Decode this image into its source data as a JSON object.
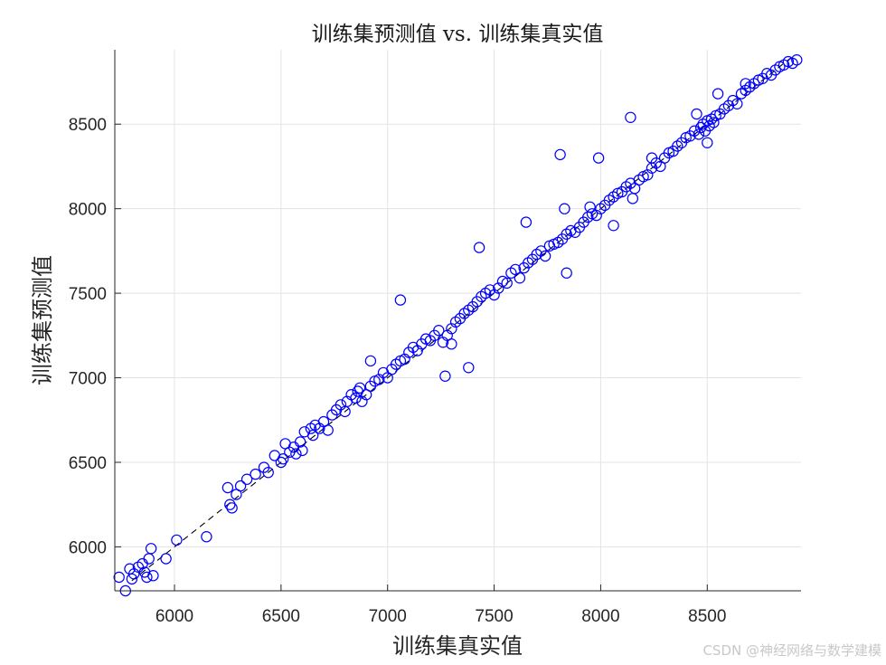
{
  "chart_data": {
    "type": "scatter",
    "title": "训练集预测值 vs. 训练集真实值",
    "xlabel": "训练集真实值",
    "ylabel": "训练集预测值",
    "xlim": [
      5720,
      8940
    ],
    "ylim": [
      5740,
      8940
    ],
    "xticks": [
      6000,
      6500,
      7000,
      7500,
      8000,
      8500
    ],
    "yticks": [
      6000,
      6500,
      7000,
      7500,
      8000,
      8500
    ],
    "grid": true,
    "reference_line": {
      "style": "dashed",
      "from": [
        5800,
        5800
      ],
      "to": [
        8900,
        8900
      ]
    },
    "marker": {
      "shape": "open-circle",
      "color": "#0000ff"
    },
    "series": [
      {
        "x": [
          5740,
          5770,
          5790,
          5800,
          5810,
          5830,
          5850,
          5860,
          5880,
          5890,
          5870,
          5900,
          5960,
          6010,
          6150,
          6250,
          6260,
          6270,
          6290,
          6310,
          6340,
          6380,
          6420,
          6440,
          6470,
          6500,
          6510,
          6520,
          6540,
          6560,
          6570,
          6590,
          6600,
          6610,
          6640,
          6650,
          6660,
          6680,
          6700,
          6720,
          6740,
          6760,
          6780,
          6800,
          6810,
          6830,
          6850,
          6860,
          6870,
          6880,
          6900,
          6920,
          6940,
          6960,
          6980,
          7000,
          7020,
          7040,
          7060,
          7080,
          7100,
          7120,
          7140,
          7160,
          7180,
          7200,
          7220,
          7240,
          7260,
          7280,
          7300,
          7320,
          7340,
          7360,
          7380,
          7400,
          7420,
          7440,
          7460,
          7480,
          7500,
          7520,
          7540,
          7560,
          7580,
          7600,
          7620,
          7640,
          7660,
          7680,
          7700,
          7720,
          7740,
          7760,
          7780,
          7800,
          7820,
          7840,
          7860,
          7880,
          7900,
          7920,
          7940,
          7960,
          7980,
          8000,
          8020,
          8040,
          8060,
          8080,
          8100,
          8120,
          8140,
          8160,
          8180,
          8200,
          8220,
          8240,
          8260,
          8280,
          8300,
          8320,
          8340,
          8360,
          8380,
          8400,
          8420,
          8440,
          8460,
          8470,
          8480,
          8490,
          8500,
          8510,
          8520,
          8530,
          8540,
          8560,
          8580,
          8600,
          8620,
          8640,
          8660,
          8680,
          8700,
          8720,
          8740,
          8760,
          8780,
          8800,
          8820,
          8840,
          8860,
          8880,
          8900,
          8920,
          7060,
          7270,
          7380,
          7810,
          7990,
          8140,
          8550,
          8680,
          7430,
          7840,
          8240,
          8500,
          8450,
          7950,
          7650,
          6920,
          7300,
          7830,
          8060,
          8150
        ],
        "y": [
          5820,
          5740,
          5870,
          5810,
          5840,
          5880,
          5900,
          5850,
          5930,
          5990,
          5820,
          5830,
          5930,
          6040,
          6060,
          6350,
          6250,
          6230,
          6310,
          6360,
          6400,
          6430,
          6470,
          6440,
          6540,
          6500,
          6520,
          6610,
          6560,
          6590,
          6550,
          6620,
          6570,
          6680,
          6700,
          6660,
          6720,
          6700,
          6740,
          6690,
          6780,
          6810,
          6840,
          6800,
          6860,
          6900,
          6880,
          6920,
          6940,
          6860,
          6900,
          6950,
          6980,
          6990,
          7030,
          7000,
          7050,
          7080,
          7100,
          7110,
          7150,
          7180,
          7160,
          7200,
          7230,
          7220,
          7250,
          7280,
          7210,
          7250,
          7290,
          7330,
          7350,
          7380,
          7400,
          7420,
          7450,
          7480,
          7500,
          7520,
          7490,
          7530,
          7570,
          7560,
          7620,
          7640,
          7590,
          7650,
          7680,
          7700,
          7730,
          7750,
          7720,
          7780,
          7790,
          7800,
          7820,
          7850,
          7870,
          7860,
          7890,
          7920,
          7950,
          7970,
          7960,
          8000,
          8020,
          8050,
          8070,
          8090,
          8100,
          8130,
          8150,
          8120,
          8170,
          8190,
          8200,
          8240,
          8270,
          8250,
          8300,
          8330,
          8340,
          8370,
          8390,
          8420,
          8430,
          8460,
          8440,
          8480,
          8500,
          8460,
          8520,
          8490,
          8530,
          8510,
          8550,
          8560,
          8590,
          8610,
          8640,
          8620,
          8680,
          8700,
          8720,
          8740,
          8760,
          8770,
          8800,
          8790,
          8820,
          8840,
          8850,
          8870,
          8860,
          8880,
          7460,
          7010,
          7060,
          8320,
          8300,
          8540,
          8680,
          8740,
          7770,
          7620,
          8300,
          8390,
          8560,
          8010,
          7920,
          7100,
          7200,
          8000,
          7900,
          8060
        ]
      }
    ]
  },
  "watermark": "CSDN @神经网络与数学建模"
}
